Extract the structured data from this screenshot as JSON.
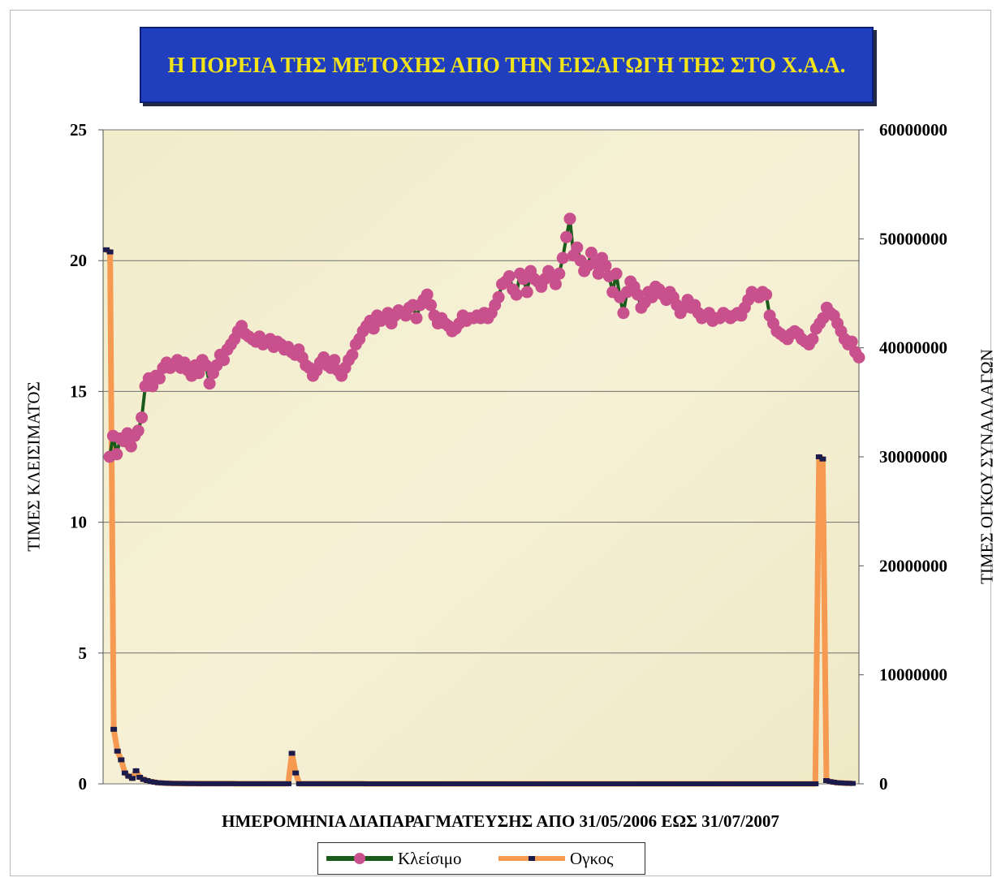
{
  "chart_data": {
    "type": "line",
    "title": "Η ΠΟΡΕΙΑ ΤΗΣ ΜΕΤΟΧΗΣ ΑΠΟ ΤΗΝ ΕΙΣΑΓΩΓΗ ΤΗΣ ΣΤΟ Χ.Α.Α.",
    "xlabel": "ΗΜΕΡΟΜΗΝΙΑ ΔΙΑΠΑΡΑΓΜΑΤΕΥΣΗΣ ΑΠΟ 31/05/2006 ΕΩΣ 31/07/2007",
    "ylabel": "ΤΙΜΕΣ ΚΛΕΙΣΙΜΑΤΟΣ",
    "ylabel_right": "ΤΙΜΕΣ ΟΓΚΟΥ ΣΥΝΑΛΛΑΓΩΝ",
    "ylim": [
      0,
      25
    ],
    "ylim_right": [
      0,
      60000000
    ],
    "yticks": [
      "0",
      "5",
      "10",
      "15",
      "20",
      "25"
    ],
    "yticks_right": [
      "0",
      "10000000",
      "20000000",
      "30000000",
      "40000000",
      "50000000",
      "60000000"
    ],
    "grid": true,
    "legend_position": "bottom",
    "series": [
      {
        "name": "Κλείσιμο",
        "axis": "left",
        "color": "#c8508c",
        "line_color": "#1a5a1a",
        "values": [
          12.5,
          13.3,
          12.6,
          13.2,
          13.1,
          13.4,
          12.9,
          13.3,
          13.5,
          14.0,
          15.2,
          15.5,
          15.2,
          15.6,
          15.5,
          15.9,
          16.1,
          15.9,
          16.0,
          16.2,
          15.9,
          16.1,
          15.8,
          15.6,
          16.0,
          15.7,
          16.2,
          16.0,
          15.3,
          15.7,
          16.0,
          16.4,
          16.2,
          16.6,
          16.8,
          17.0,
          17.3,
          17.5,
          17.2,
          17.1,
          17.0,
          16.9,
          17.1,
          16.8,
          16.9,
          17.0,
          16.7,
          16.9,
          16.8,
          16.6,
          16.7,
          16.5,
          16.4,
          16.6,
          16.3,
          16.0,
          15.9,
          15.6,
          15.8,
          16.1,
          16.3,
          16.0,
          15.9,
          16.2,
          15.8,
          15.6,
          15.9,
          16.2,
          16.4,
          16.8,
          17.0,
          17.3,
          17.5,
          17.7,
          17.4,
          17.9,
          17.7,
          17.8,
          18.0,
          17.6,
          17.9,
          18.1,
          18.0,
          17.9,
          18.2,
          18.3,
          17.8,
          18.3,
          18.5,
          18.7,
          18.3,
          17.9,
          17.6,
          17.8,
          17.6,
          17.5,
          17.3,
          17.4,
          17.6,
          17.9,
          17.7,
          17.8,
          17.8,
          17.9,
          17.8,
          18.0,
          17.8,
          18.0,
          18.3,
          18.6,
          19.1,
          19.2,
          19.4,
          18.9,
          18.7,
          19.5,
          19.3,
          18.8,
          19.6,
          19.3,
          19.2,
          19.0,
          19.3,
          19.6,
          19.4,
          19.1,
          19.5,
          20.1,
          20.9,
          21.6,
          20.2,
          20.5,
          20.0,
          19.6,
          19.8,
          20.3,
          19.9,
          19.5,
          20.1,
          19.8,
          19.4,
          18.8,
          19.5,
          18.6,
          18.0,
          18.8,
          19.2,
          19.0,
          18.7,
          18.2,
          18.4,
          18.8,
          18.6,
          19.0,
          18.9,
          18.7,
          18.5,
          18.8,
          18.6,
          18.3,
          18.0,
          18.2,
          18.5,
          18.2,
          18.3,
          18.0,
          17.8,
          17.9,
          18.0,
          17.7,
          17.8,
          17.8,
          18.0,
          17.9,
          17.8,
          17.9,
          18.0,
          17.9,
          18.2,
          18.5,
          18.8,
          18.7,
          18.6,
          18.8,
          18.7,
          17.9,
          17.6,
          17.3,
          17.2,
          17.1,
          17.0,
          17.2,
          17.3,
          17.2,
          17.0,
          16.9,
          16.8,
          17.0,
          17.4,
          17.6,
          17.8,
          18.2,
          18.0,
          17.9,
          17.6,
          17.3,
          17.0,
          16.8,
          16.9,
          16.5,
          16.3
        ]
      },
      {
        "name": "Ογκος",
        "axis": "right",
        "color": "#f59a50",
        "marker_color": "#1c1c4c",
        "values": [
          49000000,
          48800000,
          5000000,
          3000000,
          2200000,
          1000000,
          700000,
          500000,
          1200000,
          600000,
          400000,
          300000,
          200000,
          150000,
          100000,
          80000,
          60000,
          50000,
          40000,
          35000,
          30000,
          28000,
          25000,
          22000,
          20000,
          18000,
          17000,
          16000,
          15000,
          15000,
          14000,
          14000,
          13000,
          12000,
          12000,
          11000,
          10000,
          10000,
          9000,
          9000,
          8000,
          8000,
          8000,
          7000,
          7000,
          7000,
          6000,
          6000,
          6000,
          6000,
          2800000,
          1000000,
          5000,
          5000,
          5000,
          5000,
          4000,
          4000,
          4000,
          4000,
          4000,
          4000,
          4000,
          4000,
          4000,
          4000,
          4000,
          4000,
          4000,
          4000,
          3500,
          3500,
          3500,
          3500,
          3500,
          3500,
          3500,
          3000,
          3000,
          3000,
          3000,
          3000,
          3000,
          3000,
          3000,
          3000,
          3000,
          3000,
          3000,
          3000,
          3000,
          3000,
          3000,
          3000,
          3000,
          3000,
          3000,
          3000,
          3000,
          3000,
          3000,
          3000,
          3000,
          3000,
          3000,
          3000,
          3000,
          3000,
          3000,
          3000,
          3000,
          3000,
          3000,
          3000,
          3000,
          3000,
          3000,
          3000,
          3000,
          3000,
          3000,
          3000,
          3000,
          3000,
          3000,
          3000,
          3000,
          3000,
          3000,
          3000,
          3000,
          3000,
          3000,
          3000,
          3000,
          3000,
          3000,
          3000,
          3000,
          3000,
          3000,
          3000,
          3000,
          3000,
          3000,
          3000,
          3000,
          3000,
          3000,
          3000,
          3000,
          3000,
          3000,
          3000,
          3000,
          3000,
          3000,
          3000,
          3000,
          3000,
          3000,
          3000,
          3000,
          3000,
          3000,
          3000,
          3000,
          3000,
          3000,
          3000,
          3000,
          3000,
          3000,
          3000,
          3000,
          3000,
          3000,
          3000,
          3000,
          3000,
          3000,
          3000,
          3000,
          3000,
          3000,
          3000,
          3000,
          3000,
          3000,
          3000,
          3000,
          3000,
          30000000,
          29800000,
          300000,
          200000,
          150000,
          100000,
          80000,
          60000,
          50000,
          40000
        ]
      }
    ]
  }
}
